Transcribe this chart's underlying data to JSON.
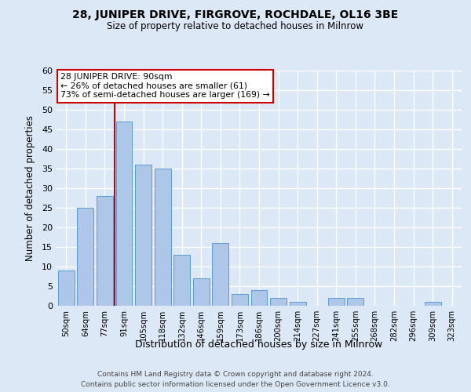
{
  "title1": "28, JUNIPER DRIVE, FIRGROVE, ROCHDALE, OL16 3BE",
  "title2": "Size of property relative to detached houses in Milnrow",
  "xlabel": "Distribution of detached houses by size in Milnrow",
  "ylabel": "Number of detached properties",
  "footer1": "Contains HM Land Registry data © Crown copyright and database right 2024.",
  "footer2": "Contains public sector information licensed under the Open Government Licence v3.0.",
  "categories": [
    "50sqm",
    "64sqm",
    "77sqm",
    "91sqm",
    "105sqm",
    "118sqm",
    "132sqm",
    "146sqm",
    "159sqm",
    "173sqm",
    "186sqm",
    "200sqm",
    "214sqm",
    "227sqm",
    "241sqm",
    "255sqm",
    "268sqm",
    "282sqm",
    "296sqm",
    "309sqm",
    "323sqm"
  ],
  "values": [
    9,
    25,
    28,
    47,
    36,
    35,
    13,
    7,
    16,
    3,
    4,
    2,
    1,
    0,
    2,
    2,
    0,
    0,
    0,
    1,
    0
  ],
  "bar_color": "#aec6e8",
  "bar_edge_color": "#5b9bd5",
  "background_color": "#dce8f5",
  "grid_color": "#ffffff",
  "annotation_text1": "28 JUNIPER DRIVE: 90sqm",
  "annotation_text2": "← 26% of detached houses are smaller (61)",
  "annotation_text3": "73% of semi-detached houses are larger (169) →",
  "annotation_box_color": "#ffffff",
  "annotation_box_edge": "#cc0000",
  "red_line_color": "#cc0000",
  "ylim": [
    0,
    60
  ],
  "yticks": [
    0,
    5,
    10,
    15,
    20,
    25,
    30,
    35,
    40,
    45,
    50,
    55,
    60
  ],
  "red_line_index": 3
}
